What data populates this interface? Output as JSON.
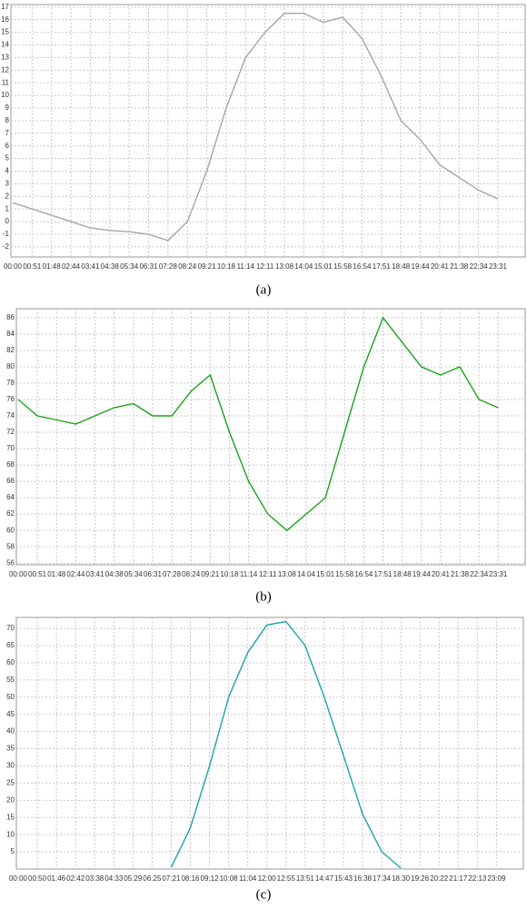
{
  "chart_data": [
    {
      "type": "line",
      "caption": "(a)",
      "categories": [
        "00:00",
        "00:51",
        "01:48",
        "02:44",
        "03:41",
        "04:38",
        "05:34",
        "06:31",
        "07:28",
        "08:24",
        "09:21",
        "10:18",
        "11:14",
        "12:11",
        "13:08",
        "14:04",
        "15:01",
        "15:58",
        "16:54",
        "17:51",
        "18:48",
        "19:44",
        "20:41",
        "21:38",
        "22:34",
        "23:31"
      ],
      "values": [
        1.5,
        1,
        0.5,
        0,
        -0.5,
        -0.7,
        -0.8,
        -1,
        -1.5,
        0,
        4,
        9,
        13,
        15,
        16.5,
        16.5,
        15.8,
        16.2,
        14.5,
        11.5,
        8,
        6.5,
        4.5,
        3.5,
        2.5,
        1.8
      ],
      "color": "#a6a6a6",
      "ylim": [
        -2.8,
        17.2
      ],
      "yticks": [
        -2,
        -1,
        0,
        1,
        2,
        3,
        4,
        5,
        6,
        7,
        8,
        9,
        10,
        11,
        12,
        13,
        14,
        15,
        16,
        17
      ],
      "grid": true
    },
    {
      "type": "line",
      "caption": "(b)",
      "categories": [
        "00:00",
        "00:51",
        "01:48",
        "02:44",
        "03:41",
        "04:38",
        "05:34",
        "06:31",
        "07:28",
        "08:24",
        "09:21",
        "10:18",
        "11:14",
        "12:11",
        "13:08",
        "14:04",
        "15:01",
        "15:58",
        "16:54",
        "17:51",
        "18:48",
        "19:44",
        "20:41",
        "21:38",
        "22:34",
        "23:31"
      ],
      "values": [
        76,
        74,
        73.5,
        73,
        74,
        75,
        75.5,
        74,
        74,
        77,
        79,
        72,
        66,
        62,
        60,
        62,
        64,
        72,
        80,
        86,
        83,
        80,
        79,
        80,
        76,
        75
      ],
      "color": "#1aa31a",
      "ylim": [
        55.8,
        87.1
      ],
      "yticks": [
        56,
        58,
        60,
        62,
        64,
        66,
        68,
        70,
        72,
        74,
        76,
        78,
        80,
        82,
        84,
        86
      ],
      "grid": true
    },
    {
      "type": "line",
      "caption": "(c)",
      "categories": [
        "00:00",
        "00:50",
        "01:46",
        "02:42",
        "03:38",
        "04:33",
        "05:29",
        "06:25",
        "07:21",
        "08:16",
        "09:12",
        "10:08",
        "11:04",
        "12:00",
        "12:55",
        "13:51",
        "14:47",
        "15:43",
        "16:38",
        "17:34",
        "18:30",
        "19:26",
        "20:22",
        "21:17",
        "22:13",
        "23:09"
      ],
      "values": [
        null,
        null,
        null,
        null,
        null,
        null,
        null,
        null,
        0.5,
        12,
        30,
        50,
        63,
        71,
        72,
        65,
        50,
        33,
        16,
        5,
        0.3,
        null,
        null,
        null,
        null,
        null
      ],
      "color": "#1aa5a5",
      "ylim": [
        0,
        73.2
      ],
      "yticks": [
        5,
        10,
        15,
        20,
        25,
        30,
        35,
        40,
        45,
        50,
        55,
        60,
        65,
        70
      ],
      "grid": true
    }
  ]
}
